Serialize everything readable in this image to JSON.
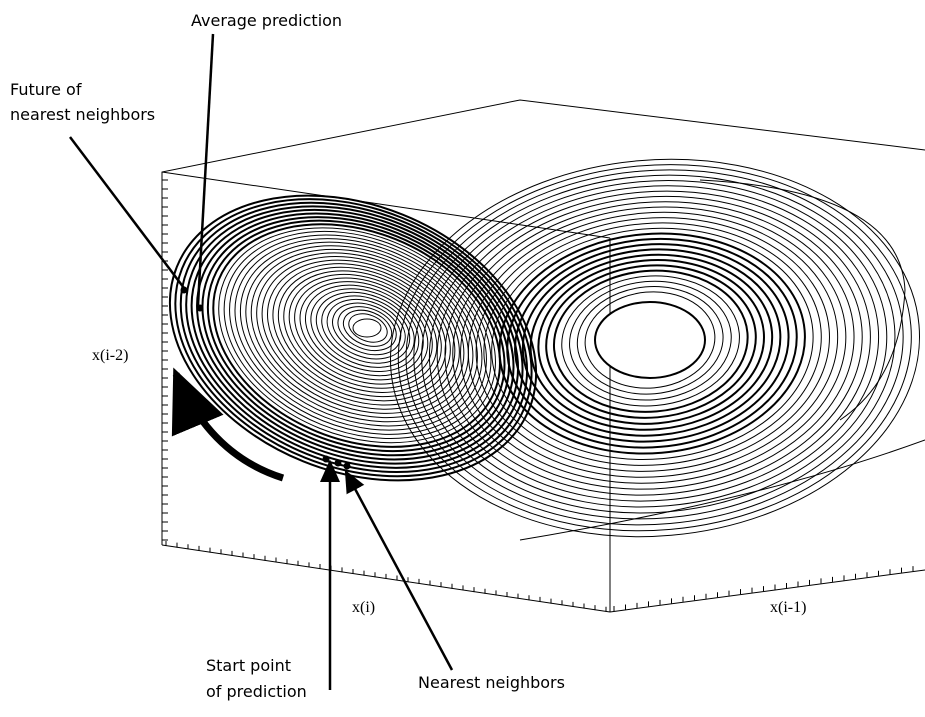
{
  "annotations": {
    "average_prediction": "Average prediction",
    "future_of_nearest_neighbors": [
      "Future of",
      "nearest neighbors"
    ],
    "start_point_of_prediction": [
      "Start point",
      "of prediction"
    ],
    "nearest_neighbors": "Nearest neighbors"
  },
  "axes": {
    "vertical": "x(i-2)",
    "front": "x(i)",
    "side": "x(i-1)"
  }
}
